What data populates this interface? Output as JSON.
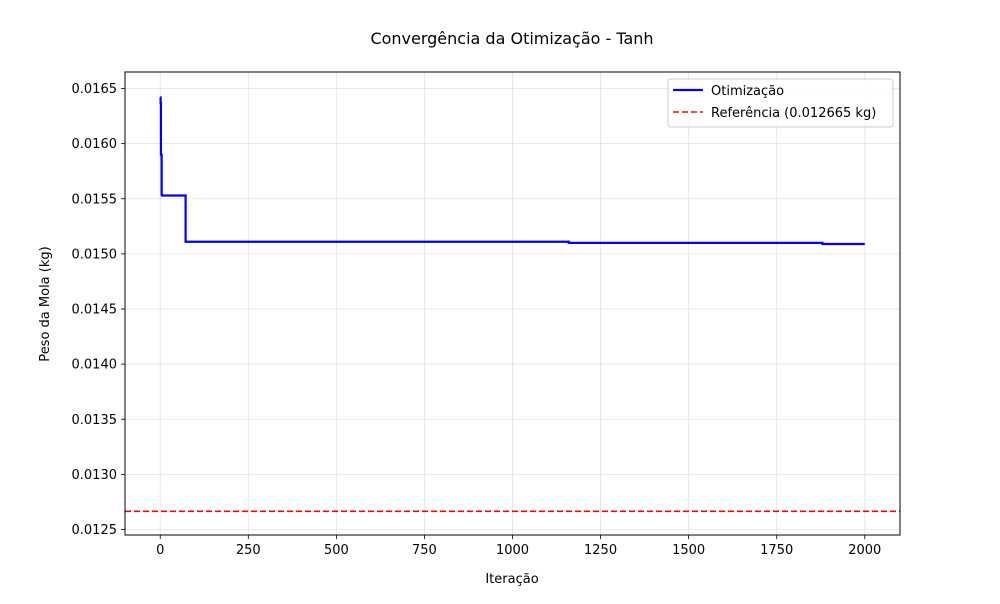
{
  "chart_data": {
    "type": "line",
    "title": "Convergência da Otimização - Tanh",
    "xlabel": "Iteração",
    "ylabel": "Peso da Mola (kg)",
    "xlim": [
      -100,
      2100
    ],
    "ylim": [
      0.01245,
      0.01665
    ],
    "grid": true,
    "legend_position": "top-right",
    "xticks": [
      0,
      250,
      500,
      750,
      1000,
      1250,
      1500,
      1750,
      2000
    ],
    "xtick_labels": [
      "0",
      "250",
      "500",
      "750",
      "1000",
      "1250",
      "1500",
      "1750",
      "2000"
    ],
    "yticks": [
      0.0125,
      0.013,
      0.0135,
      0.014,
      0.0145,
      0.015,
      0.0155,
      0.016,
      0.0165
    ],
    "ytick_labels": [
      "0.0125",
      "0.0130",
      "0.0135",
      "0.0140",
      "0.0145",
      "0.0150",
      "0.0155",
      "0.0160",
      "0.0165"
    ],
    "series": [
      {
        "name": "Otimização",
        "style": "solid",
        "color": "#0000ff",
        "x": [
          0,
          1,
          1,
          2,
          2,
          4,
          4,
          5,
          5,
          72,
          72,
          1160,
          1160,
          1880,
          1880,
          2000
        ],
        "y": [
          0.01642,
          0.01642,
          0.01637,
          0.01637,
          0.0159,
          0.0159,
          0.01554,
          0.01554,
          0.01553,
          0.01553,
          0.01511,
          0.01511,
          0.0151,
          0.0151,
          0.01509,
          0.01509
        ]
      },
      {
        "name": "Referência (0.012665 kg)",
        "style": "dashed",
        "color": "#ff0000",
        "y": 0.012665
      }
    ]
  }
}
